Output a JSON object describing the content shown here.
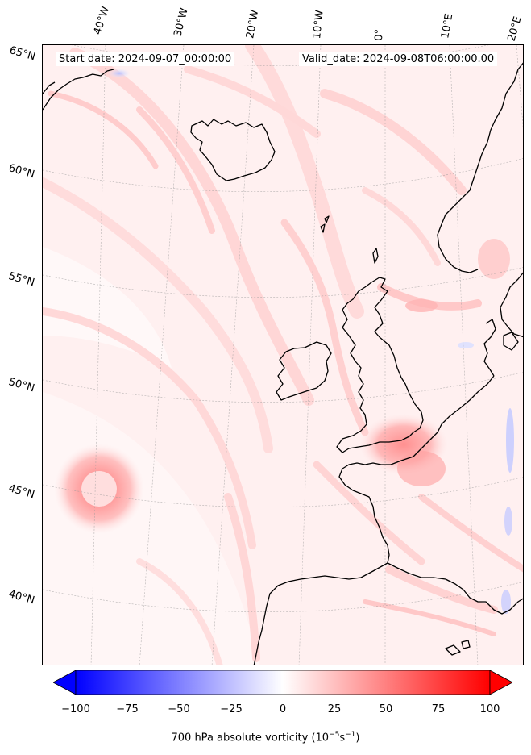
{
  "map": {
    "start_label": "Start date: 2024-09-07_00:00:00",
    "valid_label": "Valid_date: 2024-09-08T06:00:00.00",
    "longitude_labels": [
      "40°W",
      "30°W",
      "20°W",
      "10°W",
      "0°",
      "10°E",
      "20°E"
    ],
    "latitude_labels": [
      "65°N",
      "60°N",
      "55°N",
      "50°N",
      "45°N",
      "40°N"
    ],
    "region": "North Atlantic / Western Europe",
    "colormap": "bwr",
    "colors": {
      "min": "#0000ff",
      "mid": "#ffffff",
      "max": "#ff0000",
      "background_field": "#fff0f0",
      "coastline": "#000000"
    }
  },
  "colorbar": {
    "label": "700 hPa absolute vorticity (10⁻⁵s⁻¹)",
    "label_main": "700 hPa absolute vorticity (10",
    "label_exp1": "−5",
    "label_mid": "s",
    "label_exp2": "−1",
    "label_end": ")",
    "range": [
      -100,
      100
    ],
    "ticks": [
      "−100",
      "−75",
      "−50",
      "−25",
      "0",
      "25",
      "50",
      "75",
      "100"
    ],
    "extend": "both"
  }
}
